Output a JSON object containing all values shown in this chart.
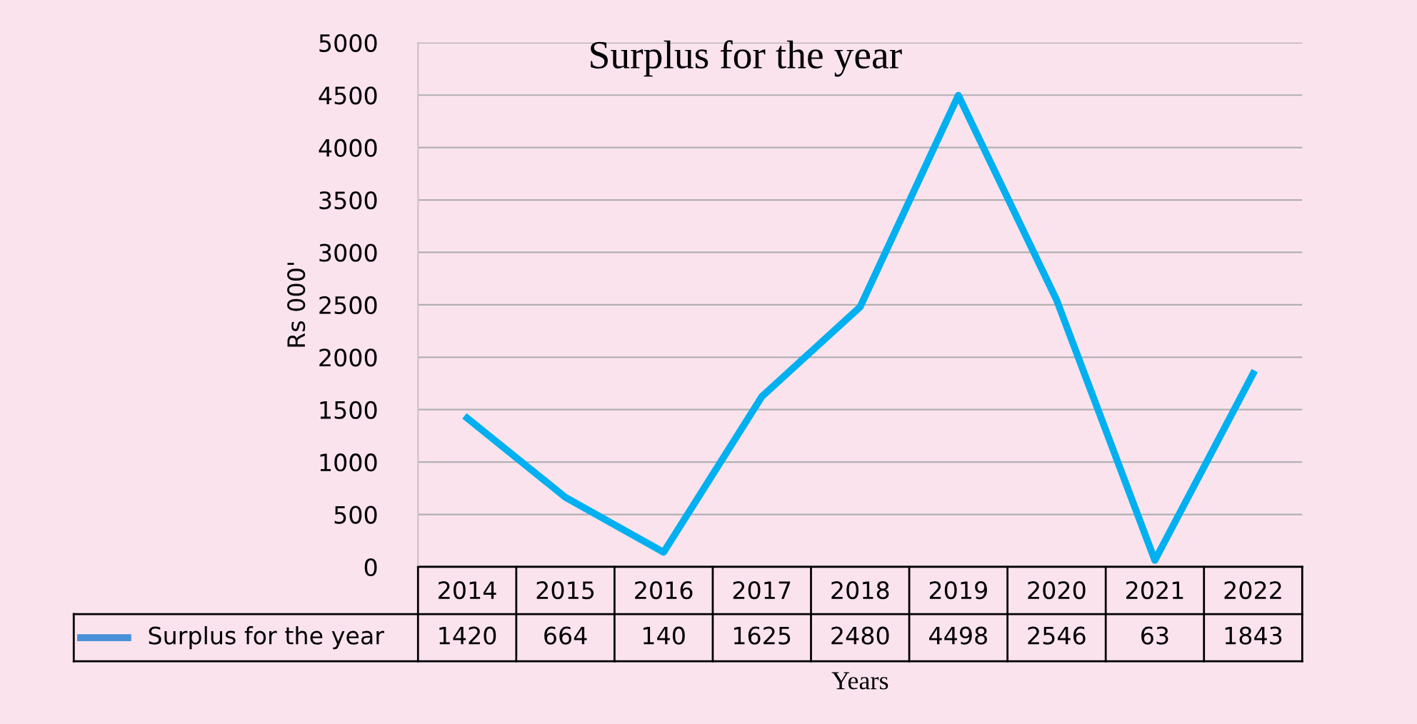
{
  "chart_data": {
    "type": "line",
    "title": "Surplus for the year",
    "xlabel": "Years",
    "ylabel": "Rs 000'",
    "categories": [
      "2014",
      "2015",
      "2016",
      "2017",
      "2018",
      "2019",
      "2020",
      "2021",
      "2022"
    ],
    "series": [
      {
        "name": "Surplus for the year",
        "color": "#00b0f0",
        "values": [
          1420,
          664,
          140,
          1625,
          2480,
          4498,
          2546,
          63,
          1843
        ]
      }
    ],
    "ylim": [
      0,
      5000
    ],
    "yticks": [
      0,
      500,
      1000,
      1500,
      2000,
      2500,
      3000,
      3500,
      4000,
      4500,
      5000
    ],
    "grid": "y",
    "data_labels": true,
    "marker": "none",
    "line_style": "solid"
  }
}
